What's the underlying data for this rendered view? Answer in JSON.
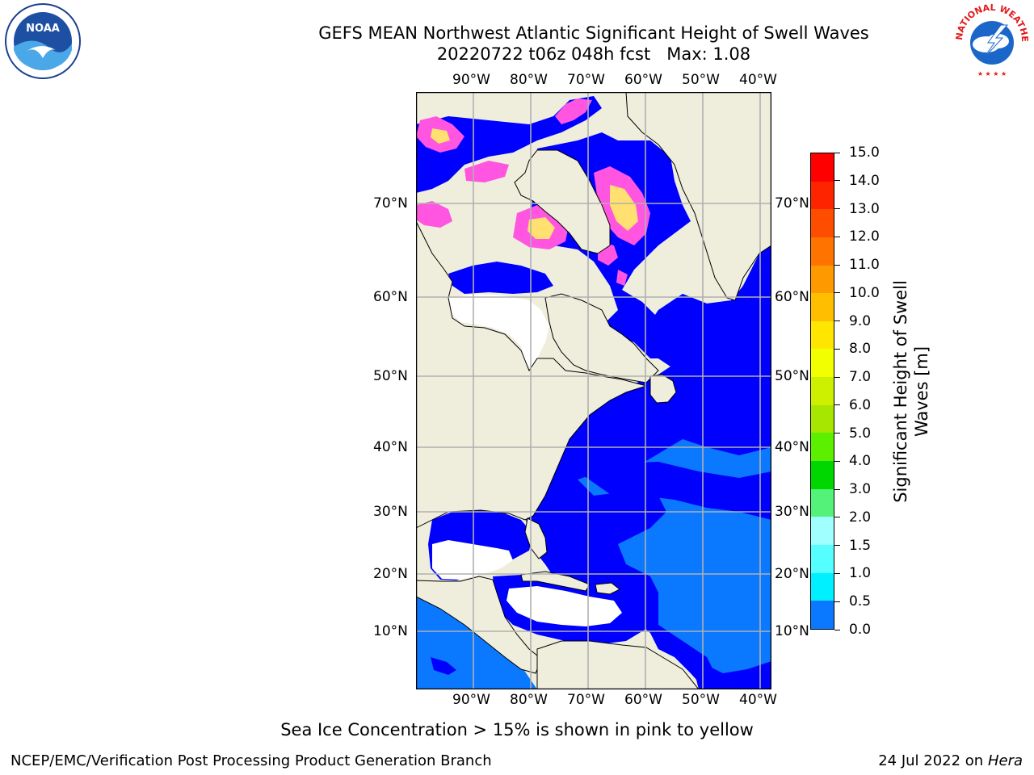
{
  "title": {
    "line1": "GEFS MEAN Northwest Atlantic Significant Height of Swell Waves",
    "line2": "20220722 t06z 048h fcst   Max: 1.08"
  },
  "map": {
    "lon_labels": [
      "90°W",
      "80°W",
      "70°W",
      "60°W",
      "50°W",
      "40°W"
    ],
    "lat_labels": [
      "70°N",
      "60°N",
      "50°N",
      "40°N",
      "30°N",
      "20°N",
      "10°N"
    ],
    "colors": {
      "land": "#efeedd",
      "deep_blue": "#0000ff",
      "light_blue": "#0a78ff",
      "no_data": "#ffffff",
      "sea_ice_pink": "#ff55e0",
      "sea_ice_yellow": "#ffe070",
      "gridline": "#b0b0b0"
    }
  },
  "colorbar": {
    "title_line1": "Significant Height of Swell",
    "title_line2": "Waves [m]",
    "ticks": [
      "15.0",
      "14.0",
      "13.0",
      "12.0",
      "11.0",
      "10.0",
      "9.0",
      "8.0",
      "7.0",
      "6.0",
      "5.0",
      "4.0",
      "3.0",
      "2.0",
      "1.5",
      "1.0",
      "0.5",
      "0.0"
    ],
    "colors": [
      "#ff0000",
      "#ff2400",
      "#ff4d00",
      "#ff7300",
      "#ff9900",
      "#ffbf00",
      "#ffe600",
      "#f2ff00",
      "#ccf000",
      "#a6e600",
      "#5cf000",
      "#00d700",
      "#55f27a",
      "#a0ffff",
      "#55ffff",
      "#00f0ff",
      "#0a78ff",
      "#0000ff"
    ]
  },
  "caption": "Sea Ice Concentration > 15% is shown in pink to yellow",
  "footer": {
    "left": "NCEP/EMC/Verification Post Processing Product Generation Branch",
    "right_prefix": "24 Jul 2022 on ",
    "right_host": "Hera"
  },
  "logos": {
    "noaa": "NOAA",
    "nws": "NATIONAL WEATHER SERVICE"
  }
}
